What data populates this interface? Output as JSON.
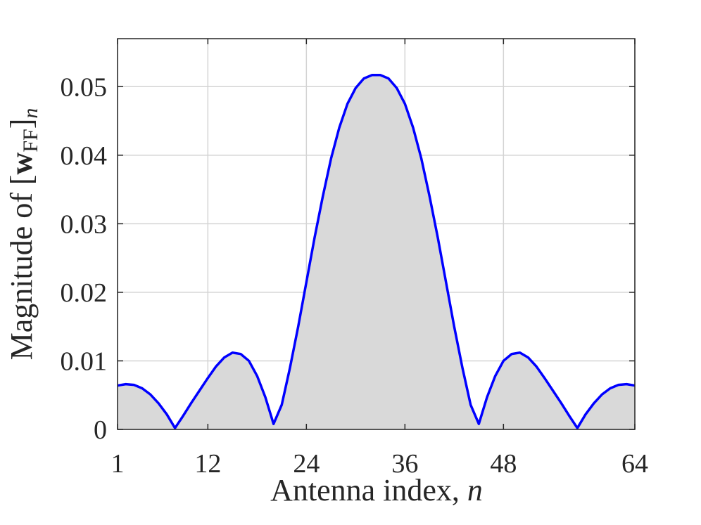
{
  "chart_data": {
    "type": "area",
    "xlabel": [
      "Antenna index,",
      "n"
    ],
    "ylabel": [
      "Magnitude of [",
      "w",
      "FF",
      "]",
      "n"
    ],
    "x": [
      1,
      2,
      3,
      4,
      5,
      6,
      7,
      8,
      9,
      10,
      11,
      12,
      13,
      14,
      15,
      16,
      17,
      18,
      19,
      20,
      21,
      22,
      23,
      24,
      25,
      26,
      27,
      28,
      29,
      30,
      31,
      32,
      33,
      34,
      35,
      36,
      37,
      38,
      39,
      40,
      41,
      42,
      43,
      44,
      45,
      46,
      47,
      48,
      49,
      50,
      51,
      52,
      53,
      54,
      55,
      56,
      57,
      58,
      59,
      60,
      61,
      62,
      63,
      64
    ],
    "values": [
      0.0064,
      0.0066,
      0.0065,
      0.006,
      0.0051,
      0.0038,
      0.0022,
      0.0002,
      0.002,
      0.0039,
      0.0057,
      0.0075,
      0.0092,
      0.0105,
      0.0112,
      0.011,
      0.01,
      0.0078,
      0.0047,
      0.0008,
      0.0036,
      0.009,
      0.015,
      0.0215,
      0.028,
      0.034,
      0.0395,
      0.044,
      0.0475,
      0.0498,
      0.0512,
      0.0517,
      0.0517,
      0.0512,
      0.0498,
      0.0475,
      0.044,
      0.0395,
      0.034,
      0.028,
      0.0215,
      0.015,
      0.009,
      0.0036,
      0.0008,
      0.0047,
      0.0078,
      0.01,
      0.011,
      0.0112,
      0.0105,
      0.0092,
      0.0075,
      0.0057,
      0.0039,
      0.002,
      0.0002,
      0.0022,
      0.0038,
      0.0051,
      0.006,
      0.0065,
      0.0066,
      0.0064
    ],
    "color": "#0000ff",
    "fill": "#d9d9d9",
    "xlim": [
      1,
      64
    ],
    "xticks": [
      1,
      12,
      24,
      36,
      48,
      64
    ],
    "ylim": [
      0,
      0.057
    ],
    "yticks": [
      0,
      0.01,
      0.02,
      0.03,
      0.04,
      0.05
    ],
    "grid": true
  }
}
